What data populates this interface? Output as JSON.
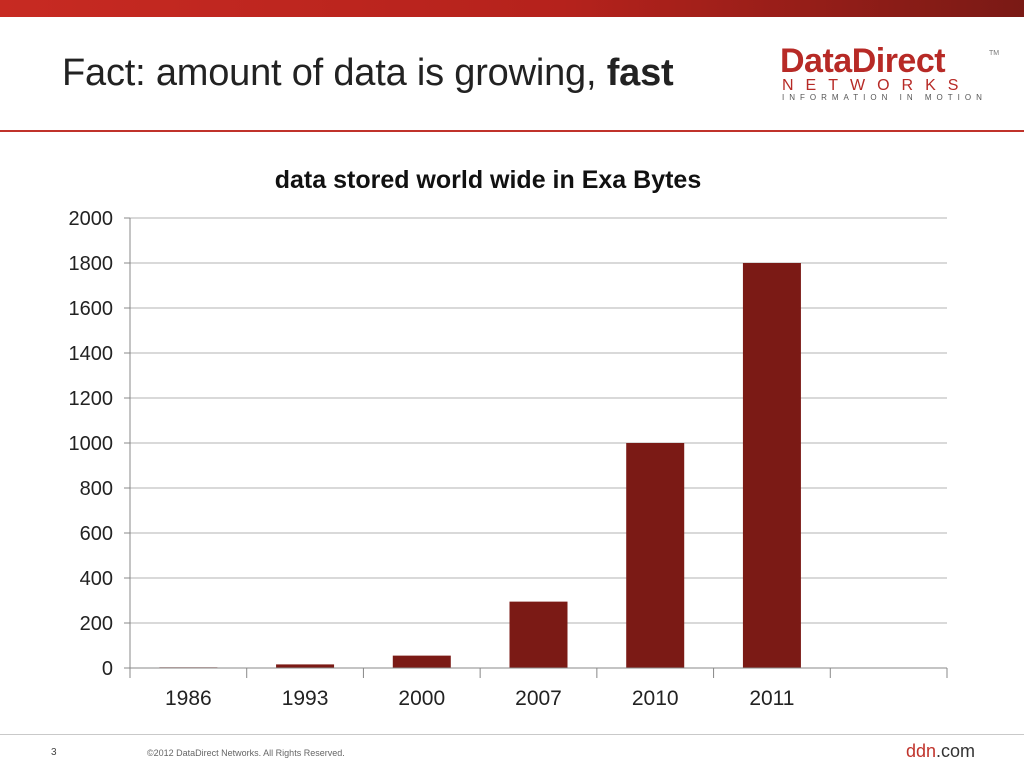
{
  "slide": {
    "title_prefix": "Fact: amount of data is growing, ",
    "title_emphasis": "fast",
    "page_number": "3",
    "copyright": "©2012 DataDirect Networks.  All Rights Reserved.",
    "footer_brand": "ddn",
    "footer_domain": ".com"
  },
  "logo": {
    "main": "DataDirect",
    "tm": "TM",
    "sub": "NETWORKS",
    "tagline": "INFORMATION IN MOTION"
  },
  "colors": {
    "accent": "#b5221c",
    "bar": "#7b1a15",
    "grid": "#b3b3b3"
  },
  "chart_data": {
    "type": "bar",
    "title": "data stored world wide in Exa Bytes",
    "categories": [
      "1986",
      "1993",
      "2000",
      "2007",
      "2010",
      "2011",
      ""
    ],
    "values": [
      3,
      16,
      55,
      295,
      1000,
      1800,
      null
    ],
    "ylim": [
      0,
      2000
    ],
    "yticks": [
      0,
      200,
      400,
      600,
      800,
      1000,
      1200,
      1400,
      1600,
      1800,
      2000
    ],
    "xlabel": "",
    "ylabel": "",
    "grid": true,
    "legend": "none"
  }
}
